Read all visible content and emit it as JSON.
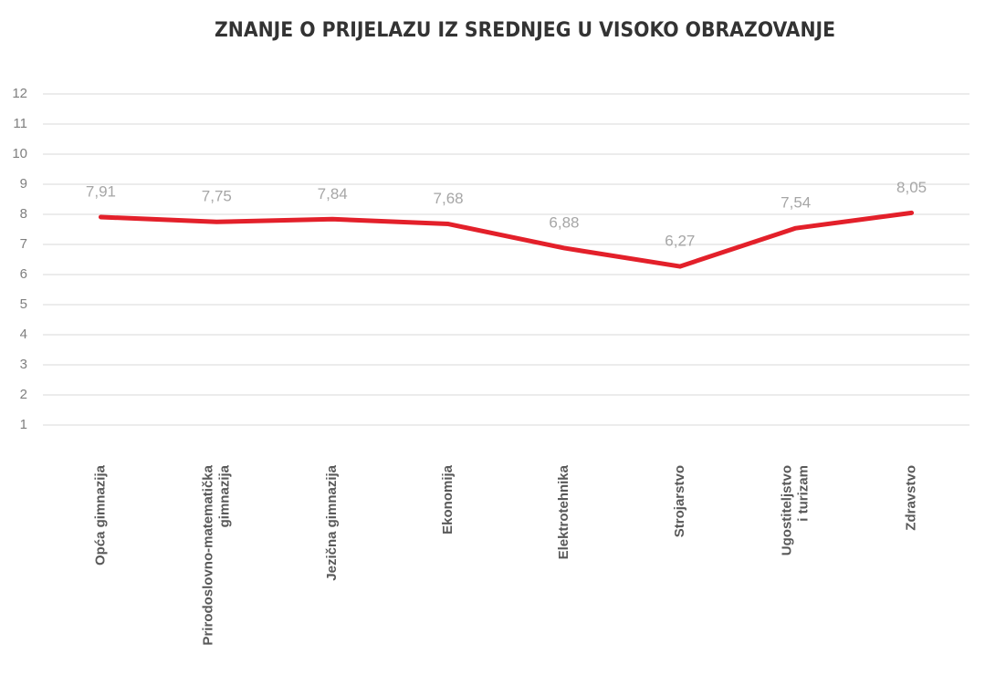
{
  "chart_data": {
    "type": "line",
    "title": "ZNANJE O PRIJELAZU IZ SREDNJEG U VISOKO OBRAZOVANJE",
    "categories": [
      "Opća gimnazija",
      "Prirodoslovno-matematička\ngimnazija",
      "Jezična gimnazija",
      "Ekonomija",
      "Elektrotehnika",
      "Strojarstvo",
      "Ugostiteljstvo\ni turizam",
      "Zdravstvo"
    ],
    "series": [
      {
        "name": "Znanje",
        "color": "#e3202a",
        "values": [
          7.91,
          7.75,
          7.84,
          7.68,
          6.88,
          6.27,
          7.54,
          8.05
        ],
        "value_labels": [
          "7,91",
          "7,75",
          "7,84",
          "7,68",
          "6,88",
          "6,27",
          "7,54",
          "8,05"
        ]
      }
    ],
    "ylim": [
      1,
      12
    ],
    "yticks": [
      1,
      2,
      3,
      4,
      5,
      6,
      7,
      8,
      9,
      10,
      11,
      12
    ],
    "grid": true
  }
}
